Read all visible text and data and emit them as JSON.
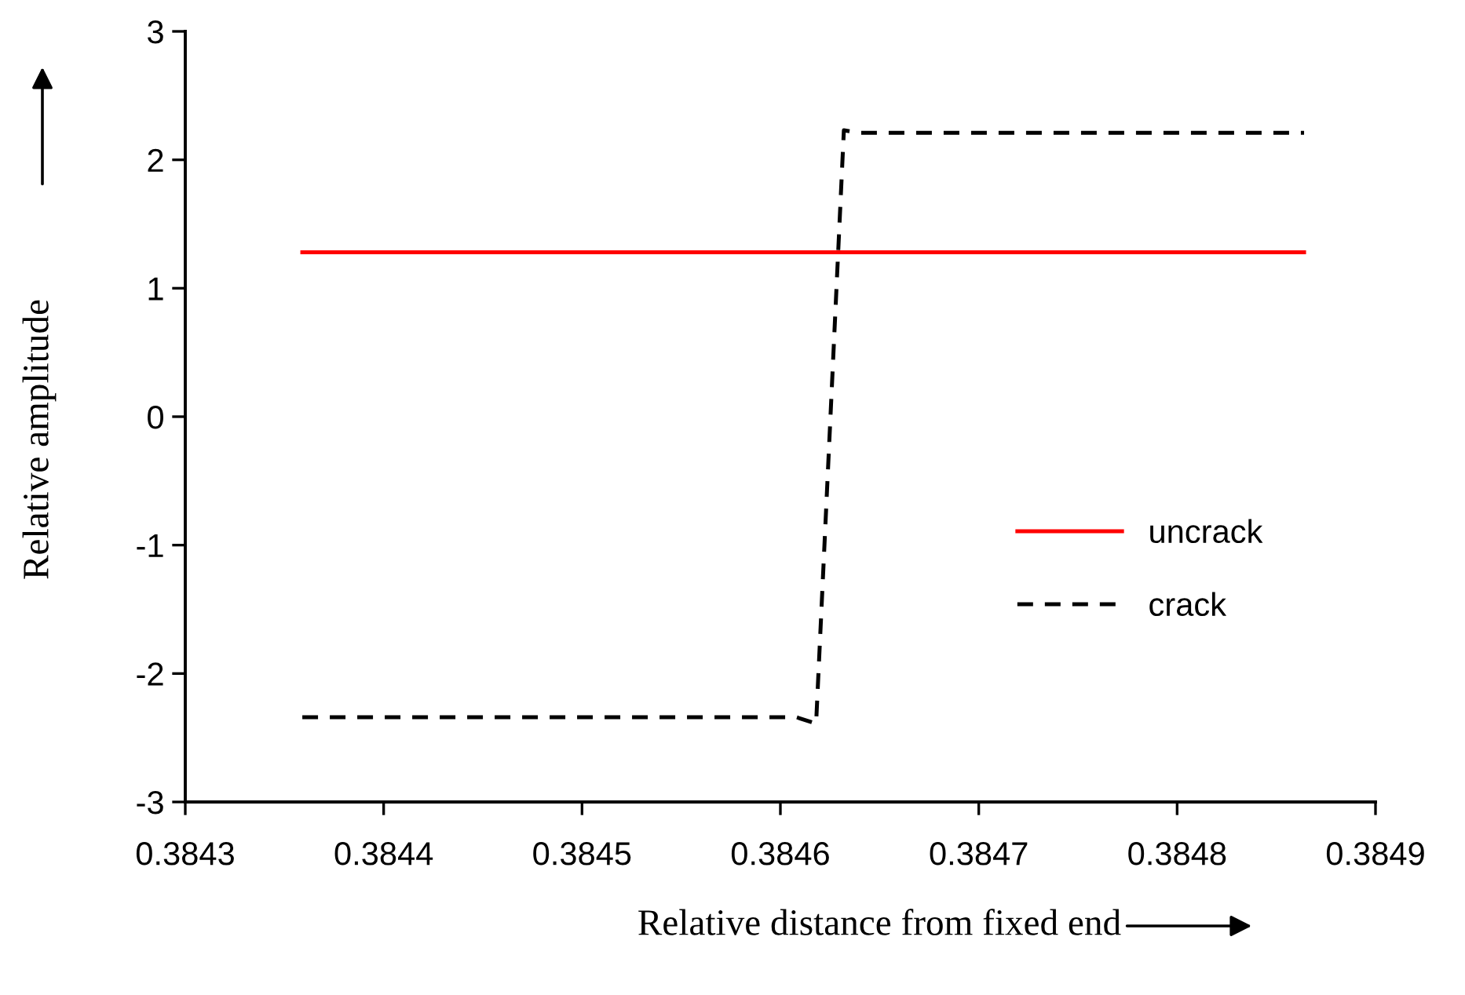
{
  "chart_data": {
    "type": "line",
    "xlabel": "Relative distance from fixed end",
    "ylabel": "Relative amplitude",
    "xlim": [
      0.3843,
      0.3849
    ],
    "xticks": [
      0.3843,
      0.3844,
      0.3845,
      0.3846,
      0.3847,
      0.3848,
      0.3849
    ],
    "ylim": [
      -3,
      3
    ],
    "yticks": [
      -3,
      -2,
      -1,
      0,
      1,
      2,
      3
    ],
    "grid": false,
    "legend": "right",
    "marker": "none",
    "series": [
      {
        "name": "uncrack",
        "color": "#ff0000",
        "line_style": "solid",
        "x": [
          0.384359,
          0.384864
        ],
        "values": [
          1.28,
          1.28
        ]
      },
      {
        "name": "crack",
        "color": "#000000",
        "line_style": "dashed",
        "x": [
          0.384359,
          0.384608,
          0.384618,
          0.384632,
          0.38464,
          0.384864
        ],
        "values": [
          -2.34,
          -2.34,
          -2.39,
          2.23,
          2.21,
          2.21
        ]
      }
    ]
  }
}
